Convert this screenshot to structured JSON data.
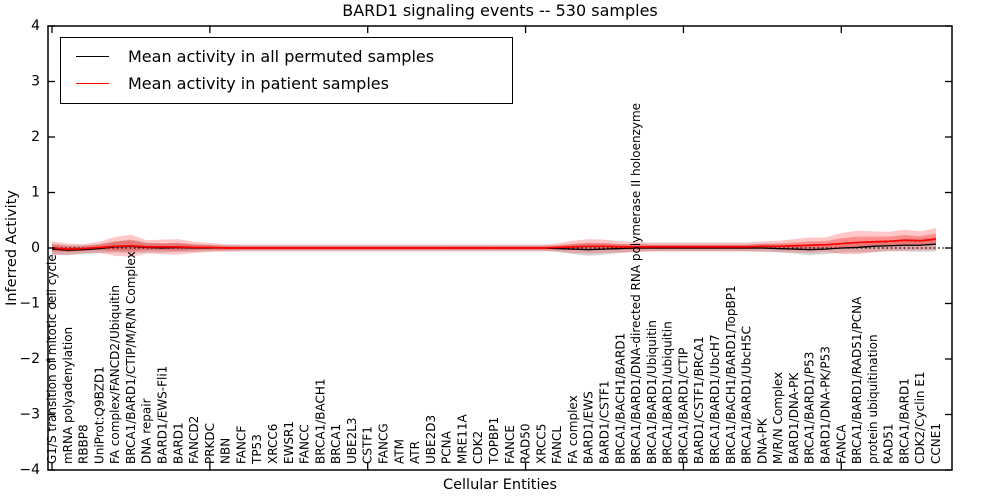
{
  "chart_data": {
    "type": "line",
    "title": "BARD1 signaling events -- 530 samples",
    "xlabel": "Cellular Entities",
    "ylabel": "Inferred Activity",
    "ylim": [
      -4,
      4
    ],
    "yticks": [
      4,
      3,
      2,
      1,
      0,
      -1,
      -2,
      -3,
      -4
    ],
    "x_major_tick_indices": [
      0,
      10,
      20,
      30,
      40,
      50
    ],
    "grid": false,
    "legend_position": "upper left",
    "reference_line": {
      "y": 0,
      "style": "dotted",
      "color": "#000000"
    },
    "categories": [
      "G1/S transition of mitotic cell cycle",
      "mRNA polyadenylation",
      "RBBP8",
      "UniProt:Q9BZD1",
      "FA complex/FANCD2/Ubiquitin",
      "BRCA1/BARD1/CTIP/M/R/N Complex",
      "DNA repair",
      "BARD1/EWS-Fli1",
      "BARD1",
      "FANCD2",
      "PRKDC",
      "NBN",
      "FANCF",
      "TP53",
      "XRCC6",
      "EWSR1",
      "FANCC",
      "BRCA1/BACH1",
      "BRCA1",
      "UBE2L3",
      "CSTF1",
      "FANCG",
      "ATM",
      "ATR",
      "UBE2D3",
      "PCNA",
      "MRE11A",
      "CDK2",
      "TOPBP1",
      "FANCE",
      "RAD50",
      "XRCC5",
      "FANCL",
      "FA complex",
      "BARD1/EWS",
      "BARD1/CSTF1",
      "BRCA1/BACH1/BARD1",
      "BRCA1/BARD1/DNA-directed RNA polymerase II holoenzyme",
      "BRCA1/BARD1/Ubiquitin",
      "BRCA1/BARD1/ubiquitin",
      "BRCA1/BARD1/CTIP",
      "BARD1/CSTF1/BRCA1",
      "BRCA1/BARD1/UbcH7",
      "BRCA1/BACH1/BARD1/TopBP1",
      "BRCA1/BARD1/UbcH5C",
      "DNA-PK",
      "M/R/N Complex",
      "BARD1/DNA-PK",
      "BRCA1/BARD1/P53",
      "BARD1/DNA-PK/P53",
      "FANCA",
      "BRCA1/BARD1/RAD51/PCNA",
      "protein ubiquitination",
      "RAD51",
      "BRCA1/BARD1",
      "CDK2/Cyclin E1",
      "CCNE1"
    ],
    "series": [
      {
        "name": "Mean activity in all permuted samples",
        "color": "#000000",
        "band_alpha": 0.16,
        "values": [
          -0.02,
          -0.04,
          -0.03,
          -0.01,
          0.02,
          0.03,
          0.01,
          0,
          0.01,
          0,
          0,
          0,
          0,
          0,
          0,
          0,
          0,
          0,
          0,
          0,
          0,
          0,
          0,
          0,
          0,
          0,
          0,
          0,
          0,
          0,
          0,
          0,
          -0.01,
          -0.02,
          -0.03,
          -0.02,
          -0.01,
          0,
          0,
          0,
          0,
          0,
          0,
          0,
          0,
          0,
          -0.01,
          -0.02,
          -0.03,
          -0.02,
          0,
          0.01,
          0.03,
          0.04,
          0.05,
          0.05,
          0.07
        ],
        "std": [
          0.1,
          0.09,
          0.08,
          0.08,
          0.1,
          0.12,
          0.09,
          0.08,
          0.08,
          0.07,
          0.06,
          0.05,
          0.05,
          0.05,
          0.05,
          0.05,
          0.05,
          0.05,
          0.05,
          0.05,
          0.05,
          0.05,
          0.05,
          0.05,
          0.05,
          0.05,
          0.05,
          0.05,
          0.05,
          0.05,
          0.05,
          0.05,
          0.06,
          0.09,
          0.11,
          0.1,
          0.08,
          0.07,
          0.06,
          0.06,
          0.06,
          0.06,
          0.06,
          0.06,
          0.06,
          0.07,
          0.07,
          0.08,
          0.1,
          0.09,
          0.08,
          0.09,
          0.1,
          0.1,
          0.11,
          0.12,
          0.13
        ]
      },
      {
        "name": "Mean activity in patient samples",
        "color": "#ff0000",
        "band_alpha": 0.22,
        "values": [
          0,
          -0.02,
          -0.01,
          0.01,
          0.03,
          0.04,
          0.02,
          0.02,
          0.02,
          0.01,
          0.01,
          0,
          0,
          0,
          0,
          0,
          0,
          0,
          0,
          0,
          0,
          0,
          0,
          0,
          0,
          0,
          0,
          0,
          0,
          0,
          0,
          0,
          0.01,
          0.02,
          0.03,
          0.03,
          0.02,
          0.02,
          0.02,
          0.02,
          0.02,
          0.02,
          0.02,
          0.02,
          0.02,
          0.03,
          0.03,
          0.04,
          0.05,
          0.06,
          0.08,
          0.1,
          0.11,
          0.12,
          0.14,
          0.13,
          0.16
        ],
        "std": [
          0.12,
          0.1,
          0.08,
          0.1,
          0.17,
          0.2,
          0.12,
          0.13,
          0.14,
          0.1,
          0.08,
          0.07,
          0.06,
          0.06,
          0.06,
          0.06,
          0.06,
          0.06,
          0.06,
          0.06,
          0.06,
          0.06,
          0.06,
          0.06,
          0.06,
          0.06,
          0.06,
          0.06,
          0.06,
          0.06,
          0.06,
          0.06,
          0.07,
          0.11,
          0.13,
          0.12,
          0.1,
          0.09,
          0.08,
          0.08,
          0.08,
          0.08,
          0.08,
          0.08,
          0.08,
          0.09,
          0.1,
          0.12,
          0.14,
          0.13,
          0.19,
          0.21,
          0.19,
          0.17,
          0.19,
          0.17,
          0.2
        ]
      }
    ]
  }
}
